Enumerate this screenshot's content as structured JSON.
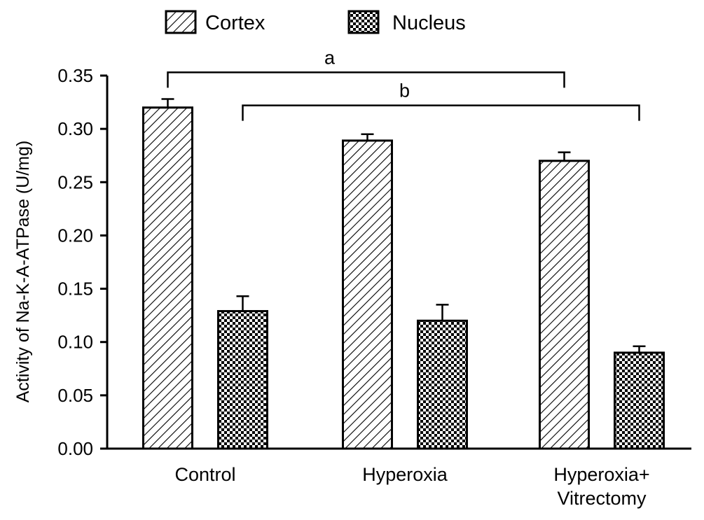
{
  "chart_data": {
    "type": "bar",
    "title": "",
    "xlabel": "",
    "ylabel": "Activity of Na-K-A-ATPase (U/mg)",
    "ylim": [
      0,
      0.35
    ],
    "yticks": [
      "0.00",
      "0.05",
      "0.10",
      "0.15",
      "0.20",
      "0.25",
      "0.30",
      "0.35"
    ],
    "categories": [
      {
        "lines": [
          "Control"
        ]
      },
      {
        "lines": [
          "Hyperoxia"
        ]
      },
      {
        "lines": [
          "Hyperoxia+",
          "Vitrectomy"
        ]
      }
    ],
    "series": [
      {
        "name": "Cortex",
        "pattern": "diagonal-hatch",
        "values": [
          0.32,
          0.289,
          0.27
        ],
        "errors": [
          0.008,
          0.006,
          0.008
        ]
      },
      {
        "name": "Nucleus",
        "pattern": "checkerboard",
        "values": [
          0.129,
          0.12,
          0.09
        ],
        "errors": [
          0.014,
          0.015,
          0.006
        ]
      }
    ],
    "legend_position": "top",
    "grid": false,
    "annotations": [
      {
        "label": "a",
        "from": {
          "category": 0,
          "series": 0
        },
        "to": {
          "category": 2,
          "series": 0
        },
        "y": 0.353
      },
      {
        "label": "b",
        "from": {
          "category": 0,
          "series": 1
        },
        "to": {
          "category": 2,
          "series": 1
        },
        "y": 0.322
      }
    ]
  },
  "colors": {
    "bar_fill": "#ffffff",
    "ink": "#000000"
  }
}
